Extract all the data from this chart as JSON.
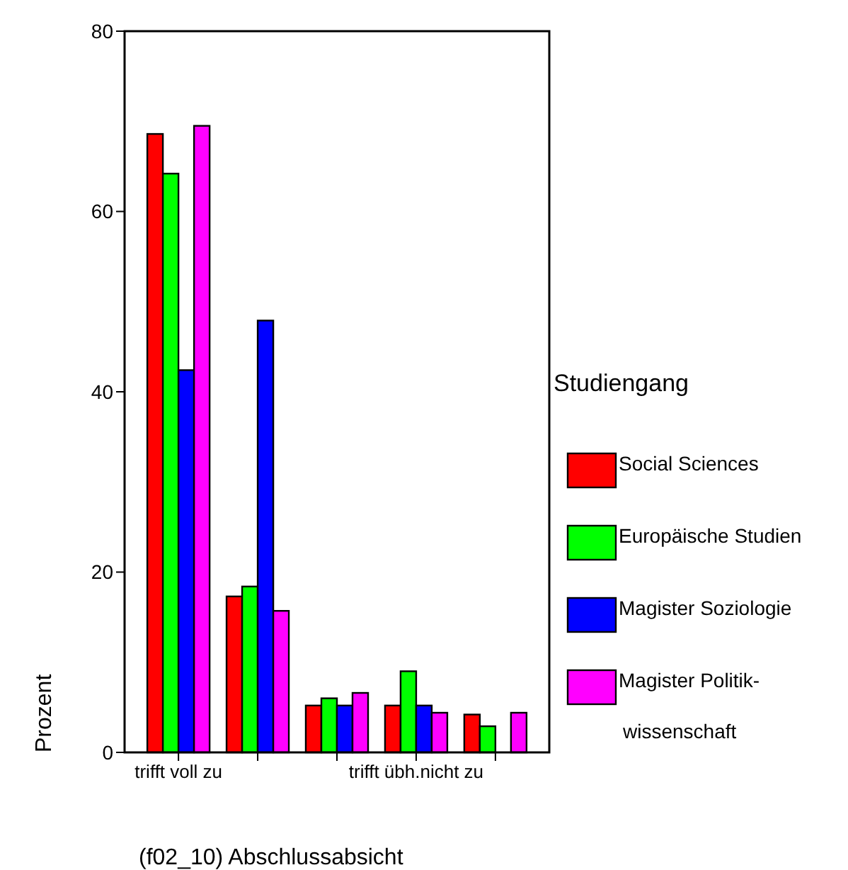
{
  "chart_data": {
    "type": "bar",
    "xlabel": "(f02_10) Abschlussabsicht",
    "ylabel": "Prozent",
    "legend_title": "Studiengang",
    "categories": [
      "trifft voll zu",
      null,
      null,
      "trifft übh.nicht zu",
      null
    ],
    "series": [
      {
        "name": "Social Sciences",
        "color": "#ff0000",
        "values": [
          68.6,
          17.3,
          5.2,
          5.2,
          4.2
        ]
      },
      {
        "name": "Europäische Studien",
        "color": "#00ff00",
        "values": [
          64.2,
          18.4,
          6.0,
          9.0,
          2.9
        ]
      },
      {
        "name": "Magister Soziologie",
        "color": "#0000ff",
        "values": [
          42.4,
          47.9,
          5.2,
          5.2,
          0
        ]
      },
      {
        "name": "Magister Politik-wissenschaft",
        "color": "#ff00ff",
        "values": [
          69.5,
          15.7,
          6.6,
          4.4,
          4.4
        ]
      }
    ],
    "ylim": [
      0,
      80
    ],
    "yticks": [
      0,
      20,
      40,
      60,
      80
    ],
    "grid": false,
    "legend": "right"
  }
}
